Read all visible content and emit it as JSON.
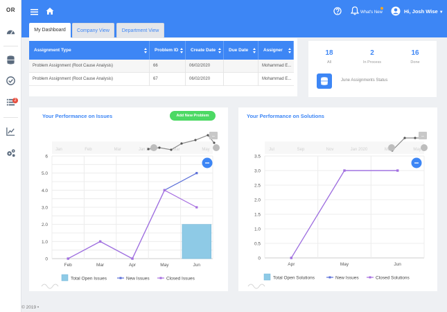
{
  "brand": {
    "logo_text": "OR"
  },
  "sidebar": {
    "items": [
      {
        "icon": "dashboard-icon"
      },
      {
        "icon": "database-icon"
      },
      {
        "icon": "check-circle-icon"
      },
      {
        "icon": "list-icon",
        "badge": "2"
      },
      {
        "icon": "trend-chart-icon"
      },
      {
        "icon": "cogs-icon"
      }
    ]
  },
  "header": {
    "whats_new": "What's New",
    "user_greeting": "Hi, Josh Wise"
  },
  "tabs": [
    {
      "label": "My Dashboard",
      "active": true
    },
    {
      "label": "Company View",
      "active": false
    },
    {
      "label": "Department View",
      "active": false
    }
  ],
  "assignments_table": {
    "columns": [
      "Assignment Type",
      "Problem ID",
      "Create Date",
      "Due Date",
      "Assigner"
    ],
    "rows": [
      [
        "Problem Assignment (Root Cause Analysis)",
        "66",
        "06/02/2020",
        "",
        "Mohammad E..."
      ],
      [
        "Problem Assignment (Root Cause Analysis)",
        "67",
        "06/02/2020",
        "",
        "Mohammad E..."
      ]
    ]
  },
  "stats": {
    "all_value": "18",
    "all_label": "All",
    "in_process_value": "2",
    "in_process_label": "In Process",
    "done_value": "16",
    "done_label": "Done",
    "caption": "June Assignments Status"
  },
  "footer": {
    "copyright": "© 2019"
  },
  "colors": {
    "accent": "#3d86f5",
    "bar_fill": "#8ecae6",
    "line_new": "#5b6fd8",
    "line_closed": "#a66ee0",
    "add_button": "#4cd964"
  },
  "issues_chart": {
    "title": "Your Performance on Issues",
    "add_button": "Add New Problem",
    "chart_data": {
      "type": "bar",
      "categories": [
        "Feb",
        "Mar",
        "Apr",
        "May",
        "Jun"
      ],
      "ylim": [
        0,
        6
      ],
      "yticks": [
        "0",
        "0.5",
        "1.0",
        "1.5",
        "2.0",
        "2.5",
        "3.0",
        "3.5",
        "4.0",
        "4.5",
        "5.0",
        "5.5",
        "6"
      ],
      "series": [
        {
          "name": "Total Open Issues",
          "kind": "bar",
          "values": [
            0,
            0,
            0,
            0,
            2
          ]
        },
        {
          "name": "New Issues",
          "kind": "line",
          "values": [
            0,
            1,
            0,
            4,
            5
          ]
        },
        {
          "name": "Closed Issues",
          "kind": "line",
          "values": [
            0,
            1,
            0,
            4,
            3
          ]
        }
      ],
      "navigator_labels": [
        "Jan",
        "Feb",
        "Mar",
        "Jan 2020",
        "Mar",
        "May"
      ]
    }
  },
  "solutions_chart": {
    "title": "Your Performance on Solutions",
    "chart_data": {
      "type": "line",
      "categories": [
        "Apr",
        "May",
        "Jun"
      ],
      "ylim": [
        0,
        3.5
      ],
      "yticks": [
        "0",
        "0.5",
        "1.0",
        "1.5",
        "2.0",
        "2.5",
        "3.0",
        "3.5"
      ],
      "series": [
        {
          "name": "Total Open Solutions",
          "kind": "bar",
          "values": [
            0,
            0,
            0
          ]
        },
        {
          "name": "New Issues",
          "kind": "line",
          "values": [
            0,
            3,
            3
          ]
        },
        {
          "name": "Closed Solutions",
          "kind": "line",
          "values": [
            0,
            3,
            3
          ]
        }
      ],
      "navigator_labels": [
        "Jul",
        "Sep",
        "Nov",
        "Jan 2020",
        "Mar",
        "May"
      ]
    }
  }
}
